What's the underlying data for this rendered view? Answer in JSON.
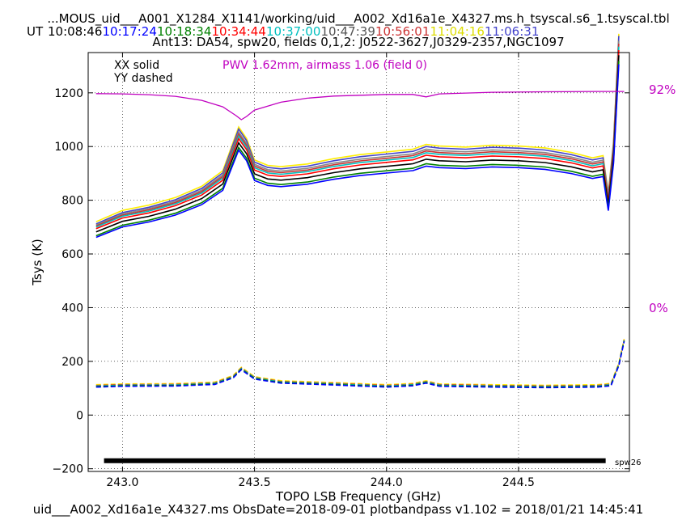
{
  "header": {
    "title": "...MOUS_uid___A001_X1284_X1141/working/uid___A002_Xd16a1e_X4327.ms.h_tsyscal.s6_1.tsyscal.tbl",
    "ut_label": "UT",
    "times": [
      {
        "text": "10:08:46",
        "color": "#000000"
      },
      {
        "text": "10:17:24",
        "color": "#0000ff"
      },
      {
        "text": "10:18:34",
        "color": "#008000"
      },
      {
        "text": "10:34:44",
        "color": "#ff0000"
      },
      {
        "text": "10:37:00",
        "color": "#00bfbf"
      },
      {
        "text": "10:47:39",
        "color": "#555555"
      },
      {
        "text": "10:56:01",
        "color": "#cc3333"
      },
      {
        "text": "11:04:16",
        "color": "#dddd00"
      },
      {
        "text": "11:06:31",
        "color": "#4444cc"
      }
    ],
    "subtitle": "Ant13: DA54,  spw20,  fields 0,1,2: J0522-3627,J0329-2357,NGC1097"
  },
  "legend": {
    "xx": "XX solid",
    "yy": "YY dashed",
    "pwv": "PWV 1.62mm, airmass 1.06 (field 0)",
    "pwv_color": "#c000c0"
  },
  "right_axis": {
    "top_label": "92%",
    "bottom_label": "0%",
    "color": "#c000c0"
  },
  "spw_label": "spw26",
  "footer": "uid___A002_Xd16a1e_X4327.ms  ObsDate=2018-09-01   plotbandpass v1.102 = 2018/01/21 14:45:41",
  "chart_data": {
    "type": "line",
    "xlabel": "TOPO LSB Frequency (GHz)",
    "ylabel": "Tsys (K)",
    "xlim": [
      242.87,
      244.92
    ],
    "ylim": [
      -210,
      1350
    ],
    "x_ticks": [
      243.0,
      243.5,
      244.0,
      244.5
    ],
    "x_tick_labels": [
      "243.0",
      "243.5",
      "244.0",
      "244.5"
    ],
    "y_ticks": [
      -200,
      0,
      200,
      400,
      600,
      800,
      1000,
      1200
    ],
    "y_tick_labels": [
      "−200",
      "0",
      "200",
      "400",
      "600",
      "800",
      "1000",
      "1200"
    ],
    "grid": true,
    "spw_bar": {
      "x_start": 242.93,
      "x_end": 244.83,
      "y": -170
    },
    "xx_shape": [
      [
        242.9,
        0
      ],
      [
        243.0,
        42
      ],
      [
        243.1,
        62
      ],
      [
        243.2,
        90
      ],
      [
        243.3,
        132
      ],
      [
        243.38,
        190
      ],
      [
        243.44,
        353
      ],
      [
        243.47,
        310
      ],
      [
        243.5,
        230
      ],
      [
        243.55,
        210
      ],
      [
        243.6,
        205
      ],
      [
        243.7,
        215
      ],
      [
        243.8,
        235
      ],
      [
        243.9,
        250
      ],
      [
        244.0,
        260
      ],
      [
        244.1,
        270
      ],
      [
        244.15,
        288
      ],
      [
        244.2,
        282
      ],
      [
        244.3,
        278
      ],
      [
        244.4,
        285
      ],
      [
        244.5,
        282
      ],
      [
        244.6,
        275
      ],
      [
        244.7,
        258
      ],
      [
        244.78,
        238
      ],
      [
        244.82,
        246
      ],
      [
        244.84,
        108
      ],
      [
        244.86,
        300
      ],
      [
        244.88,
        700
      ]
    ],
    "xx_series": [
      {
        "base": 720,
        "scale": 1.0,
        "color": "#ffee00"
      },
      {
        "base": 712,
        "scale": 1.0,
        "color": "#4444cc"
      },
      {
        "base": 708,
        "scale": 0.98,
        "color": "#888888"
      },
      {
        "base": 704,
        "scale": 0.97,
        "color": "#cc3333"
      },
      {
        "base": 700,
        "scale": 0.96,
        "color": "#00bfbf"
      },
      {
        "base": 694,
        "scale": 0.95,
        "color": "#ff0000"
      },
      {
        "base": 682,
        "scale": 0.94,
        "color": "#000000"
      },
      {
        "base": 668,
        "scale": 0.93,
        "color": "#008000"
      },
      {
        "base": 662,
        "scale": 0.92,
        "color": "#0000ff"
      }
    ],
    "yy_shape": [
      [
        242.9,
        0
      ],
      [
        243.0,
        3
      ],
      [
        243.2,
        4
      ],
      [
        243.35,
        10
      ],
      [
        243.42,
        35
      ],
      [
        243.45,
        65
      ],
      [
        243.5,
        30
      ],
      [
        243.6,
        15
      ],
      [
        243.8,
        8
      ],
      [
        244.0,
        0
      ],
      [
        244.1,
        5
      ],
      [
        244.15,
        15
      ],
      [
        244.2,
        3
      ],
      [
        244.4,
        0
      ],
      [
        244.6,
        -2
      ],
      [
        244.8,
        0
      ],
      [
        244.85,
        5
      ],
      [
        244.88,
        80
      ],
      [
        244.9,
        170
      ]
    ],
    "yy_series": [
      {
        "base": 113,
        "color": "#ffee00"
      },
      {
        "base": 110,
        "color": "#cc3333"
      },
      {
        "base": 108,
        "color": "#00bfbf"
      },
      {
        "base": 106,
        "color": "#008000"
      },
      {
        "base": 104,
        "color": "#0000ff"
      }
    ],
    "pwv_curve": [
      [
        242.9,
        1197
      ],
      [
        243.0,
        1196
      ],
      [
        243.1,
        1193
      ],
      [
        243.2,
        1187
      ],
      [
        243.3,
        1172
      ],
      [
        243.38,
        1148
      ],
      [
        243.43,
        1115
      ],
      [
        243.45,
        1100
      ],
      [
        243.47,
        1112
      ],
      [
        243.5,
        1136
      ],
      [
        243.6,
        1165
      ],
      [
        243.7,
        1180
      ],
      [
        243.8,
        1188
      ],
      [
        244.0,
        1194
      ],
      [
        244.1,
        1194
      ],
      [
        244.15,
        1185
      ],
      [
        244.2,
        1196
      ],
      [
        244.4,
        1202
      ],
      [
        244.6,
        1204
      ],
      [
        244.8,
        1205
      ],
      [
        244.9,
        1205
      ]
    ]
  }
}
